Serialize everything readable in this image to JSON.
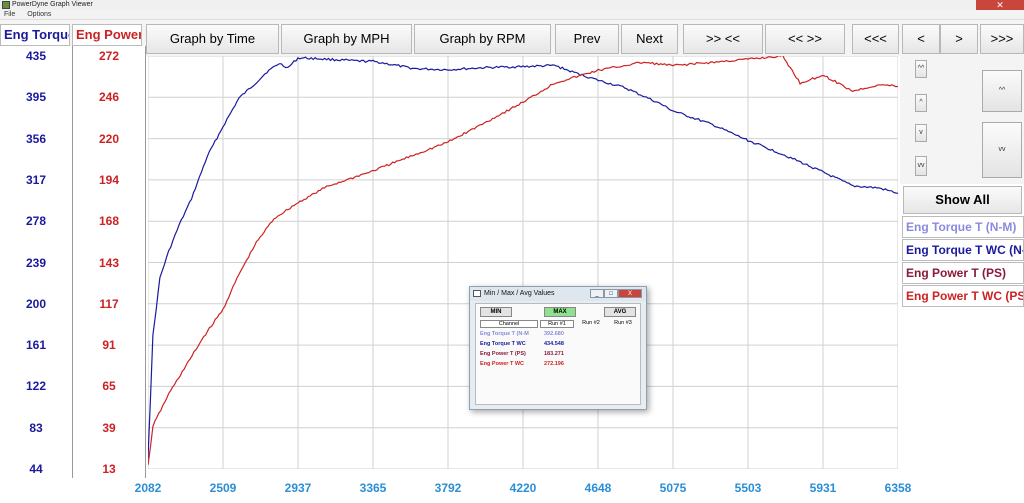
{
  "window": {
    "title": "PowerDyne Graph Viewer",
    "menu": [
      "File",
      "Options"
    ]
  },
  "toolbar": {
    "graph_by_time": "Graph by Time",
    "graph_by_mph": "Graph by MPH",
    "graph_by_rpm": "Graph by RPM",
    "prev": "Prev",
    "next": "Next",
    "zoom_in": ">> <<",
    "zoom_out": "<< >>",
    "scroll_far_left": "<<<",
    "scroll_left": "<",
    "scroll_right": ">",
    "scroll_far_right": ">>>"
  },
  "left_legend": {
    "torque_label": "Eng Torque",
    "power_label": "Eng Power"
  },
  "colors": {
    "torque": "#1a1a9e",
    "power": "#cc2222",
    "torque_light": "#8a8ae0",
    "power_dark": "#8b1a3a",
    "grid": "#d0d0d0",
    "xaxis": "#2a8fd6"
  },
  "right_panel": {
    "show_all": "Show All",
    "small_buttons": [
      "^^",
      "^",
      "v",
      "vv"
    ],
    "tall_buttons": [
      "^^",
      "vv"
    ],
    "legend": [
      {
        "label": "Eng Torque T (N-M)",
        "color": "#8a8ae0"
      },
      {
        "label": "Eng Torque T WC (N-M)",
        "color": "#1a1a9e"
      },
      {
        "label": "Eng Power T (PS)",
        "color": "#8b1a3a"
      },
      {
        "label": "Eng Power T WC (PS)",
        "color": "#cc2222"
      }
    ]
  },
  "chart_data": {
    "type": "line",
    "x_ticks": [
      "2082",
      "2509",
      "2937",
      "3365",
      "3792",
      "4220",
      "4648",
      "5075",
      "5503",
      "5931",
      "6358"
    ],
    "torque_ticks": [
      "435",
      "395",
      "356",
      "317",
      "278",
      "239",
      "200",
      "161",
      "122",
      "83",
      "44"
    ],
    "power_ticks": [
      "272",
      "246",
      "220",
      "194",
      "168",
      "143",
      "117",
      "91",
      "65",
      "39",
      "13"
    ],
    "xlim": [
      2082,
      6358
    ],
    "torque_ylim": [
      44,
      435
    ],
    "power_ylim": [
      13,
      272
    ],
    "grid": true,
    "series": [
      {
        "name": "Eng Torque T WC",
        "axis": "torque",
        "color": "#1a1a9e",
        "x": [
          2082,
          2110,
          2150,
          2200,
          2260,
          2330,
          2420,
          2509,
          2600,
          2700,
          2760,
          2830,
          2880,
          2937,
          2980,
          3100,
          3300,
          3365,
          3600,
          3792,
          4000,
          4220,
          4400,
          4500,
          4648,
          4800,
          5000,
          5075,
          5300,
          5503,
          5700,
          5931,
          6100,
          6250,
          6358
        ],
        "y": [
          55,
          170,
          225,
          250,
          275,
          300,
          340,
          368,
          395,
          410,
          420,
          428,
          424,
          433,
          433,
          432,
          430,
          430,
          423,
          422,
          424,
          425,
          426,
          420,
          412,
          405,
          390,
          383,
          370,
          355,
          342,
          325,
          312,
          310,
          305
        ]
      },
      {
        "name": "Eng Power T WC",
        "axis": "power",
        "color": "#cc2222",
        "x": [
          2082,
          2110,
          2200,
          2300,
          2400,
          2509,
          2600,
          2700,
          2800,
          2937,
          3100,
          3365,
          3600,
          3792,
          4000,
          4220,
          4400,
          4648,
          4900,
          5075,
          5300,
          5503,
          5700,
          5800,
          5931,
          6100,
          6250,
          6358
        ],
        "y": [
          15,
          40,
          60,
          78,
          96,
          113,
          135,
          155,
          170,
          180,
          190,
          200,
          210,
          218,
          230,
          243,
          255,
          263,
          268,
          266,
          268,
          270,
          272,
          255,
          260,
          250,
          254,
          253
        ]
      }
    ]
  },
  "dialog": {
    "title": "Min / Max / Avg Values",
    "min_label": "MIN",
    "max_label": "MAX",
    "avg_label": "AVG",
    "col_channel": "Channel",
    "col_run1": "Run #1",
    "col_run2": "Run #2",
    "col_run3": "Run #3",
    "rows": [
      {
        "channel": "Eng Torque T (N-M",
        "run1": "392.680",
        "color": "#8a8ae0"
      },
      {
        "channel": "Eng Torque T WC",
        "run1": "434.548",
        "color": "#1a1a9e"
      },
      {
        "channel": "Eng Power T (PS)",
        "run1": "183.271",
        "color": "#8b1a3a"
      },
      {
        "channel": "Eng Power T WC",
        "run1": "272.196",
        "color": "#cc2222"
      }
    ],
    "controls": [
      "_",
      "□",
      "X"
    ]
  }
}
